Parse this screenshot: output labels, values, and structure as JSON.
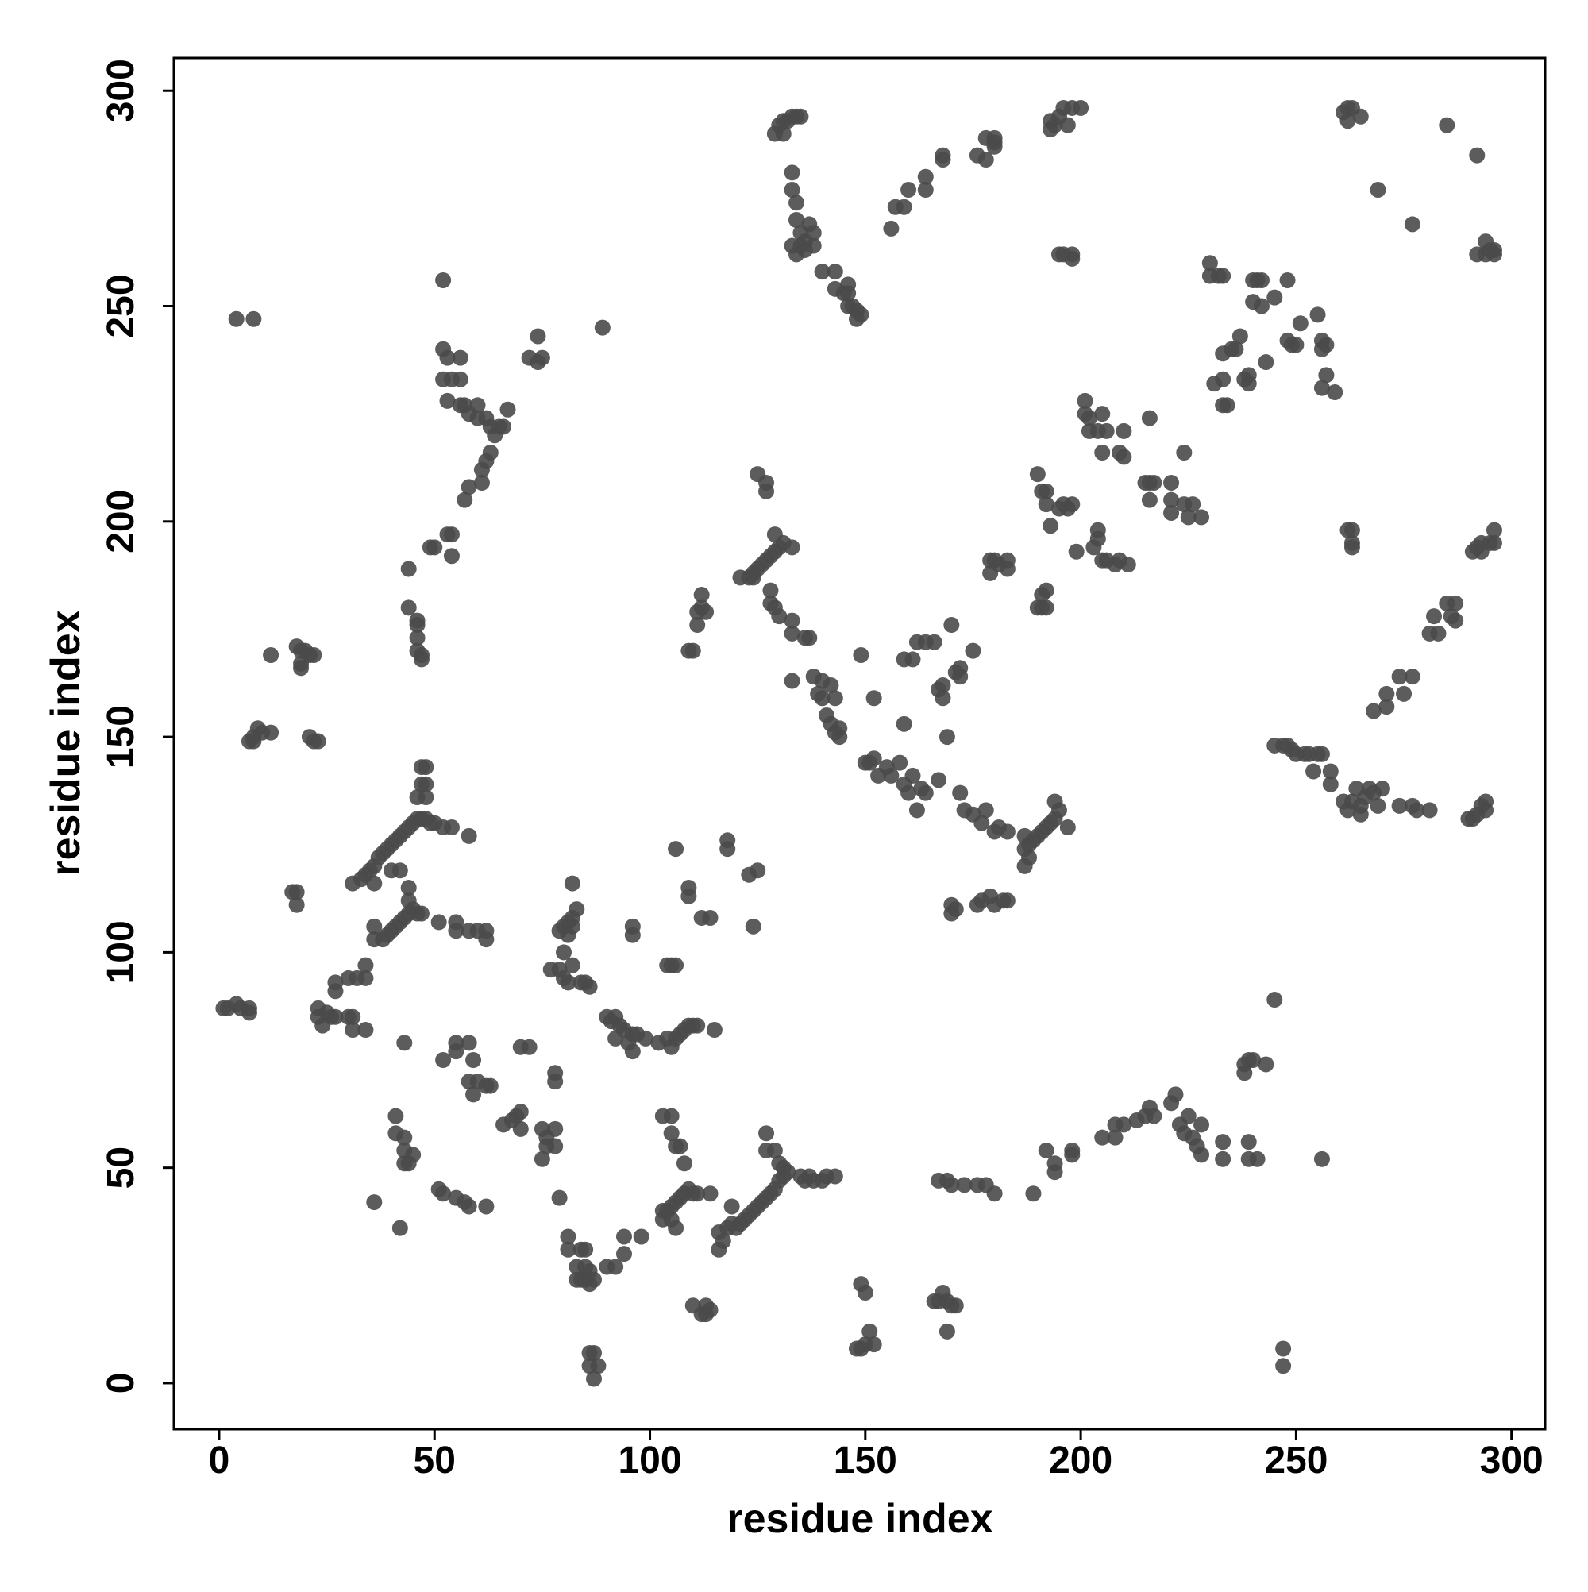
{
  "chart_data": {
    "type": "scatter",
    "xlabel": "residue index",
    "ylabel": "residue index",
    "color": "#4a4a4a",
    "xlim": [
      -10.5,
      307.8
    ],
    "ylim": [
      -10.7,
      307.6
    ],
    "xticks": [
      0,
      50,
      100,
      150,
      200,
      250,
      300
    ],
    "yticks": [
      0,
      50,
      100,
      150,
      200,
      250,
      300
    ],
    "x": [
      4,
      8,
      52,
      52,
      53,
      56,
      52,
      54,
      56,
      53,
      56,
      57,
      58,
      60,
      60,
      62,
      63,
      64,
      65,
      66,
      67,
      63,
      62,
      61,
      61,
      58,
      57,
      54,
      53,
      54,
      49,
      50,
      44,
      44,
      46,
      46,
      46,
      46,
      47,
      47,
      72,
      74,
      75,
      74,
      89,
      18,
      19,
      20,
      21,
      22,
      19,
      19,
      12,
      7,
      8,
      8,
      9,
      10,
      12,
      21,
      22,
      23,
      17,
      18,
      18,
      48,
      47,
      48,
      47,
      46,
      48,
      31,
      33,
      34,
      35,
      36,
      37,
      38,
      39,
      40,
      41,
      42,
      43,
      44,
      45,
      46,
      47,
      48,
      49,
      50,
      52,
      54,
      58,
      36,
      40,
      42,
      36,
      38,
      39,
      40,
      41,
      42,
      43,
      44,
      45,
      46,
      47,
      44,
      44,
      36,
      51,
      55,
      55,
      58,
      60,
      62,
      62,
      1,
      2,
      4,
      5,
      7,
      7,
      23,
      23,
      24,
      25,
      26,
      27,
      30,
      31,
      31,
      34,
      27,
      27,
      30,
      32,
      34,
      34,
      43,
      52,
      55,
      55,
      58,
      59,
      58,
      60,
      59,
      62,
      63,
      66,
      68,
      70,
      69,
      70,
      70,
      72,
      41,
      41,
      43,
      43,
      45,
      44,
      43,
      36,
      42,
      51,
      52,
      55,
      57,
      58,
      62,
      75,
      76,
      78,
      78,
      76,
      75,
      78,
      78,
      79,
      77,
      79,
      80,
      80,
      81,
      82,
      84,
      85,
      86,
      79,
      80,
      81,
      82,
      83,
      82,
      82,
      81,
      90,
      91,
      92,
      93,
      94,
      92,
      95,
      96,
      97,
      99,
      96,
      96,
      96,
      81,
      81,
      83,
      84,
      85,
      83,
      84,
      85,
      86,
      87,
      85,
      86,
      90,
      92,
      94,
      94,
      98,
      86,
      87,
      88,
      87,
      86,
      103,
      105,
      105,
      106,
      107,
      108,
      103,
      104,
      105,
      106,
      107,
      108,
      109,
      110,
      103,
      105,
      106,
      111,
      114,
      113,
      112,
      113,
      114,
      110,
      102,
      104,
      105,
      106,
      107,
      108,
      109,
      110,
      111,
      115,
      104,
      105,
      106,
      109,
      109,
      106,
      112,
      114,
      118,
      118,
      125,
      123,
      124,
      109,
      110,
      111,
      111,
      112,
      113,
      112,
      116,
      117,
      118,
      119,
      120,
      121,
      122,
      123,
      124,
      125,
      126,
      127,
      128,
      129,
      130,
      131,
      132,
      131,
      130,
      129,
      127,
      127,
      119,
      116,
      135,
      137,
      138,
      140,
      141,
      143,
      136,
      149,
      150,
      148,
      149,
      150,
      151,
      152,
      166,
      167,
      168,
      169,
      170,
      171,
      169,
      167,
      169,
      170,
      173,
      176,
      178,
      180,
      189,
      192,
      194,
      194,
      198,
      198,
      205,
      208,
      208,
      210,
      213,
      215,
      216,
      217,
      221,
      222,
      223,
      224,
      225,
      226,
      228,
      227,
      228,
      233,
      233,
      238,
      238,
      239,
      240,
      243,
      239,
      239,
      241,
      256,
      245,
      247,
      247,
      125,
      127,
      127,
      121,
      123,
      124,
      125,
      126,
      127,
      128,
      129,
      130,
      131,
      133,
      129,
      124,
      128,
      128,
      129,
      130,
      133,
      133,
      136,
      137,
      133,
      138,
      140,
      142,
      139,
      140,
      143,
      141,
      142,
      143,
      144,
      144,
      149,
      150,
      151,
      152,
      153,
      155,
      156,
      158,
      159,
      160,
      161,
      163,
      164,
      162,
      167,
      169,
      152,
      159,
      159,
      161,
      162,
      164,
      166,
      167,
      168,
      168,
      170,
      171,
      172,
      172,
      175,
      172,
      173,
      175,
      177,
      178,
      180,
      181,
      183,
      187,
      187,
      188,
      189,
      190,
      191,
      192,
      193,
      194,
      195,
      194,
      197,
      187,
      188,
      170,
      170,
      171,
      176,
      177,
      179,
      180,
      182,
      183,
      190,
      191,
      191,
      192,
      192,
      179,
      179,
      180,
      181,
      183,
      183,
      190,
      191,
      192,
      192,
      193,
      195,
      196,
      197,
      198,
      199,
      203,
      204,
      204,
      205,
      206,
      208,
      209,
      211,
      201,
      201,
      202,
      202,
      204,
      205,
      205,
      206,
      209,
      210,
      210,
      216,
      215,
      216,
      217,
      216,
      221,
      221,
      221,
      224,
      224,
      225,
      226,
      228,
      230,
      230,
      232,
      233,
      231,
      233,
      233,
      235,
      236,
      233,
      234,
      237,
      238,
      239,
      239,
      240,
      240,
      241,
      242,
      242,
      243,
      245,
      248,
      248,
      249,
      250,
      251,
      255,
      256,
      256,
      257,
      257,
      256,
      259,
      262,
      263,
      263,
      263,
      245,
      247,
      248,
      249,
      250,
      252,
      253,
      254,
      255,
      256,
      258,
      258,
      261,
      262,
      263,
      264,
      265,
      265,
      266,
      267,
      268,
      269,
      270,
      274,
      277,
      278,
      281,
      268,
      271,
      271,
      274,
      275,
      277,
      281,
      282,
      283,
      285,
      286,
      287,
      287,
      291,
      292,
      293,
      293,
      295,
      296,
      296,
      290,
      291,
      292,
      293,
      294,
      294,
      261,
      262,
      263,
      262,
      265,
      285,
      292,
      269,
      277,
      292,
      294,
      294,
      295,
      296,
      296,
      129,
      130,
      131,
      132,
      133,
      134,
      135,
      131,
      133,
      133,
      134,
      134,
      135,
      135,
      133,
      134,
      136,
      137,
      138,
      138,
      136,
      140,
      143,
      143,
      145,
      146,
      146,
      146,
      147,
      148,
      148,
      149,
      156,
      157,
      159,
      160,
      164,
      164,
      168,
      168,
      176,
      178,
      178,
      180,
      180,
      180,
      193,
      193,
      194,
      195,
      196,
      197,
      198,
      200,
      195,
      196,
      198,
      198
    ],
    "values": [
      247,
      247,
      256,
      240,
      238,
      238,
      233,
      233,
      233,
      228,
      227,
      227,
      225,
      227,
      224,
      224,
      222,
      220,
      222,
      222,
      226,
      216,
      214,
      212,
      209,
      208,
      205,
      197,
      197,
      192,
      194,
      194,
      189,
      180,
      177,
      176,
      173,
      170,
      169,
      168,
      238,
      237,
      238,
      243,
      245,
      171,
      170,
      170,
      169,
      169,
      167,
      166,
      169,
      149,
      149,
      150,
      152,
      151,
      151,
      150,
      149,
      149,
      114,
      114,
      111,
      143,
      143,
      139,
      139,
      136,
      136,
      116,
      117,
      118,
      119,
      120,
      122,
      123,
      124,
      125,
      126,
      127,
      128,
      129,
      130,
      131,
      131,
      131,
      130,
      130,
      129,
      129,
      127,
      116,
      119,
      119,
      103,
      103,
      104,
      105,
      106,
      107,
      108,
      109,
      110,
      109,
      109,
      112,
      115,
      106,
      107,
      107,
      105,
      105,
      105,
      105,
      103,
      87,
      87,
      88,
      87,
      86,
      87,
      87,
      85,
      83,
      86,
      85,
      85,
      85,
      85,
      82,
      82,
      93,
      91,
      94,
      94,
      94,
      97,
      79,
      75,
      77,
      79,
      79,
      75,
      70,
      70,
      67,
      69,
      69,
      60,
      61,
      63,
      62,
      59,
      78,
      78,
      62,
      58,
      57,
      54,
      53,
      51,
      51,
      42,
      36,
      45,
      44,
      43,
      42,
      41,
      41,
      59,
      57,
      59,
      55,
      55,
      52,
      72,
      70,
      43,
      96,
      96,
      100,
      94,
      93,
      97,
      93,
      93,
      92,
      105,
      106,
      107,
      108,
      110,
      106,
      116,
      104,
      85,
      84,
      85,
      83,
      82,
      80,
      79,
      81,
      81,
      80,
      77,
      104,
      106,
      34,
      31,
      27,
      31,
      31,
      24,
      24,
      24,
      23,
      24,
      27,
      26,
      27,
      27,
      30,
      34,
      34,
      7,
      7,
      4,
      1,
      4,
      62,
      62,
      58,
      55,
      55,
      51,
      40,
      40,
      41,
      42,
      43,
      44,
      45,
      44,
      38,
      38,
      36,
      44,
      44,
      18,
      16,
      16,
      17,
      18,
      79,
      80,
      78,
      80,
      81,
      82,
      83,
      83,
      83,
      82,
      97,
      97,
      97,
      113,
      115,
      124,
      108,
      108,
      126,
      124,
      119,
      118,
      106,
      170,
      170,
      176,
      179,
      183,
      179,
      180,
      31,
      33,
      36,
      37,
      36,
      37,
      38,
      39,
      40,
      41,
      42,
      43,
      44,
      45,
      47,
      48,
      49,
      50,
      51,
      54,
      54,
      58,
      41,
      35,
      48,
      48,
      47,
      47,
      48,
      48,
      47,
      23,
      21,
      8,
      8,
      9,
      12,
      9,
      19,
      19,
      21,
      19,
      18,
      18,
      12,
      47,
      47,
      46,
      46,
      46,
      46,
      44,
      44,
      54,
      49,
      51,
      53,
      54,
      57,
      57,
      60,
      60,
      61,
      62,
      64,
      62,
      65,
      67,
      60,
      58,
      62,
      57,
      60,
      55,
      53,
      52,
      56,
      72,
      74,
      75,
      75,
      74,
      56,
      52,
      52,
      52,
      89,
      8,
      4,
      211,
      209,
      207,
      187,
      187,
      188,
      189,
      190,
      191,
      192,
      193,
      194,
      195,
      194,
      197,
      187,
      184,
      181,
      180,
      178,
      177,
      174,
      173,
      173,
      163,
      164,
      163,
      162,
      160,
      159,
      159,
      155,
      153,
      151,
      150,
      152,
      169,
      144,
      144,
      145,
      141,
      143,
      141,
      144,
      139,
      137,
      141,
      138,
      137,
      133,
      140,
      150,
      159,
      153,
      168,
      168,
      172,
      172,
      172,
      161,
      162,
      159,
      176,
      165,
      166,
      164,
      170,
      137,
      133,
      132,
      130,
      133,
      128,
      129,
      128,
      127,
      124,
      125,
      126,
      127,
      128,
      129,
      130,
      131,
      133,
      135,
      129,
      120,
      122,
      109,
      111,
      110,
      111,
      112,
      113,
      111,
      112,
      112,
      180,
      180,
      183,
      184,
      180,
      188,
      191,
      191,
      190,
      189,
      191,
      211,
      207,
      207,
      204,
      199,
      203,
      204,
      203,
      204,
      193,
      194,
      196,
      198,
      191,
      191,
      190,
      191,
      190,
      228,
      225,
      224,
      221,
      221,
      225,
      216,
      221,
      216,
      215,
      221,
      224,
      209,
      209,
      209,
      205,
      209,
      205,
      202,
      204,
      216,
      201,
      204,
      201,
      260,
      257,
      257,
      257,
      232,
      233,
      239,
      240,
      240,
      227,
      227,
      243,
      233,
      234,
      232,
      256,
      251,
      256,
      256,
      250,
      237,
      252,
      256,
      242,
      241,
      241,
      246,
      248,
      242,
      240,
      241,
      234,
      231,
      230,
      198,
      195,
      194,
      198,
      148,
      148,
      148,
      147,
      146,
      146,
      146,
      142,
      146,
      146,
      142,
      139,
      135,
      133,
      135,
      138,
      134,
      132,
      136,
      138,
      137,
      134,
      138,
      134,
      134,
      133,
      133,
      156,
      160,
      157,
      164,
      160,
      164,
      174,
      178,
      174,
      181,
      178,
      181,
      177,
      193,
      194,
      195,
      193,
      195,
      198,
      195,
      131,
      131,
      132,
      134,
      133,
      135,
      295,
      296,
      296,
      293,
      294,
      292,
      285,
      277,
      269,
      262,
      262,
      265,
      263,
      263,
      262,
      290,
      292,
      293,
      293,
      294,
      294,
      294,
      290,
      281,
      277,
      274,
      270,
      267,
      264,
      264,
      262,
      263,
      269,
      267,
      264,
      265,
      258,
      258,
      254,
      253,
      255,
      253,
      250,
      250,
      247,
      249,
      248,
      268,
      273,
      273,
      277,
      277,
      280,
      284,
      285,
      285,
      289,
      284,
      288,
      289,
      287,
      293,
      291,
      292,
      294,
      296,
      292,
      296,
      296,
      262,
      262,
      262,
      261
    ]
  }
}
